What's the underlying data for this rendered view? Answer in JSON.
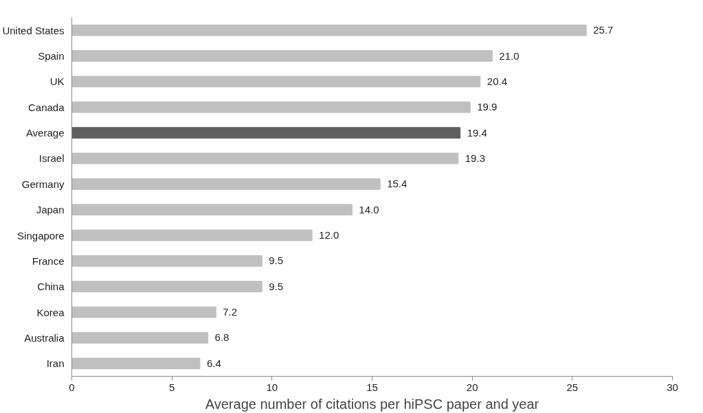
{
  "chart_data": {
    "type": "bar",
    "orientation": "horizontal",
    "xlabel": "Average number of citations per hiPSC paper and year",
    "categories": [
      "United States",
      "Spain",
      "UK",
      "Canada",
      "Average",
      "Israel",
      "Germany",
      "Japan",
      "Singapore",
      "France",
      "China",
      "Korea",
      "Australia",
      "Iran"
    ],
    "values": [
      25.7,
      21.0,
      20.4,
      19.9,
      19.4,
      19.3,
      15.4,
      14.0,
      12.0,
      9.5,
      9.5,
      7.2,
      6.8,
      6.4
    ],
    "colors": [
      "#c0c0c0",
      "#c0c0c0",
      "#c0c0c0",
      "#c0c0c0",
      "#606060",
      "#c0c0c0",
      "#c0c0c0",
      "#c0c0c0",
      "#c0c0c0",
      "#c0c0c0",
      "#c0c0c0",
      "#c0c0c0",
      "#c0c0c0",
      "#c0c0c0"
    ],
    "value_labels": [
      "25.7",
      "21.0",
      "20.4",
      "19.9",
      "19.4",
      "19.3",
      "15.4",
      "14.0",
      "12.0",
      "9.5",
      "9.5",
      "7.2",
      "6.8",
      "6.4"
    ],
    "xlim": [
      0,
      30
    ],
    "xticks": [
      0,
      5,
      10,
      15,
      20,
      25,
      30
    ],
    "grid": false
  }
}
